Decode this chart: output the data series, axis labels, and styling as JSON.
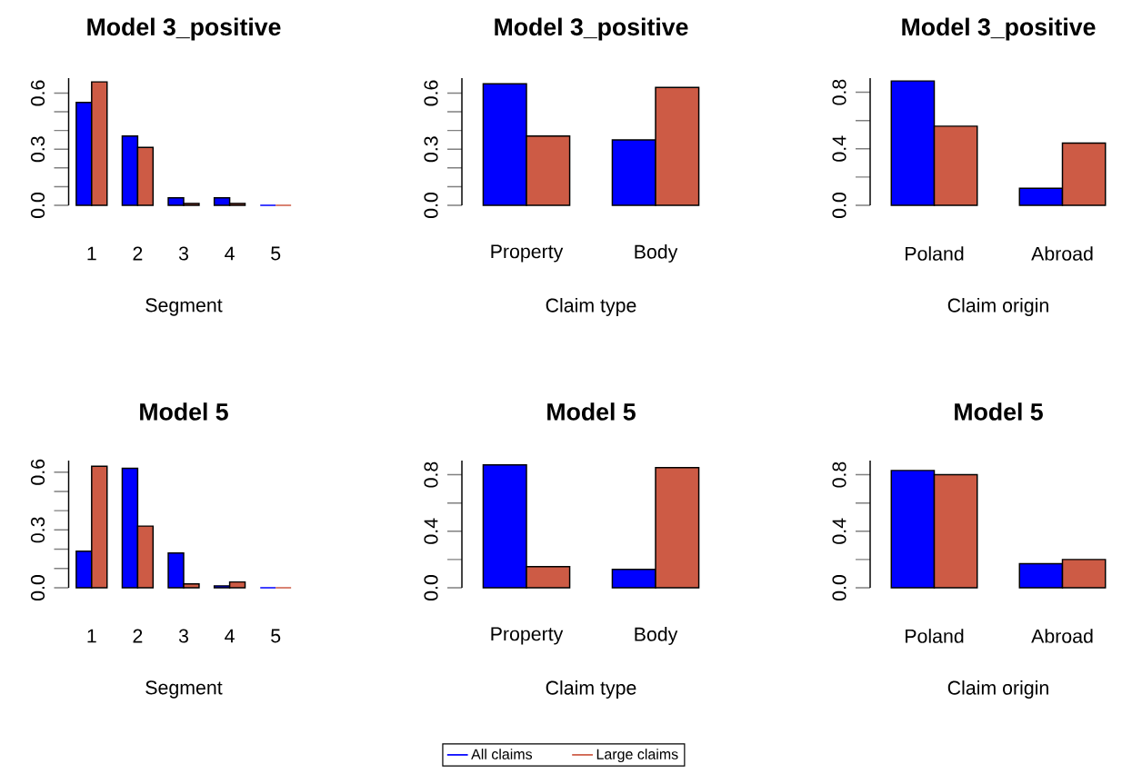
{
  "chart_data": [
    {
      "type": "bar",
      "title": "Model 3_positive",
      "xlabel": "Segment",
      "categories": [
        "1",
        "2",
        "3",
        "4",
        "5"
      ],
      "series": [
        {
          "color": "#0000ff",
          "values": [
            0.55,
            0.37,
            0.04,
            0.04,
            0
          ]
        },
        {
          "color": "#cd5b45",
          "values": [
            0.66,
            0.31,
            0.01,
            0.01,
            0
          ]
        }
      ],
      "ylim": [
        0,
        0.68
      ],
      "yticks": [
        {
          "value": 0,
          "label": "0.0"
        },
        {
          "value": 0.1,
          "label": null
        },
        {
          "value": 0.2,
          "label": null
        },
        {
          "value": 0.3,
          "label": "0.3"
        },
        {
          "value": 0.4,
          "label": null
        },
        {
          "value": 0.5,
          "label": null
        },
        {
          "value": 0.6,
          "label": "0.6"
        }
      ]
    },
    {
      "type": "bar",
      "title": "Model 3_positive",
      "xlabel": "Claim type",
      "categories": [
        "Property",
        "Body"
      ],
      "series": [
        {
          "color": "#0000ff",
          "values": [
            0.65,
            0.35
          ]
        },
        {
          "color": "#cd5b45",
          "values": [
            0.37,
            0.63
          ]
        }
      ],
      "ylim": [
        0,
        0.68
      ],
      "yticks": [
        {
          "value": 0,
          "label": "0.0"
        },
        {
          "value": 0.1,
          "label": null
        },
        {
          "value": 0.2,
          "label": null
        },
        {
          "value": 0.3,
          "label": "0.3"
        },
        {
          "value": 0.4,
          "label": null
        },
        {
          "value": 0.5,
          "label": null
        },
        {
          "value": 0.6,
          "label": "0.6"
        }
      ]
    },
    {
      "type": "bar",
      "title": "Model 3_positive",
      "xlabel": "Claim origin",
      "categories": [
        "Poland",
        "Abroad"
      ],
      "series": [
        {
          "color": "#0000ff",
          "values": [
            0.88,
            0.12
          ]
        },
        {
          "color": "#cd5b45",
          "values": [
            0.56,
            0.44
          ]
        }
      ],
      "ylim": [
        0,
        0.9
      ],
      "yticks": [
        {
          "value": 0,
          "label": "0.0"
        },
        {
          "value": 0.2,
          "label": null
        },
        {
          "value": 0.4,
          "label": "0.4"
        },
        {
          "value": 0.6,
          "label": null
        },
        {
          "value": 0.8,
          "label": "0.8"
        }
      ]
    },
    {
      "type": "bar",
      "title": "Model 5",
      "xlabel": "Segment",
      "categories": [
        "1",
        "2",
        "3",
        "4",
        "5"
      ],
      "series": [
        {
          "color": "#0000ff",
          "values": [
            0.19,
            0.62,
            0.18,
            0.01,
            0
          ]
        },
        {
          "color": "#cd5b45",
          "values": [
            0.63,
            0.32,
            0.02,
            0.03,
            0
          ]
        }
      ],
      "ylim": [
        0,
        0.66
      ],
      "yticks": [
        {
          "value": 0,
          "label": "0.0"
        },
        {
          "value": 0.1,
          "label": null
        },
        {
          "value": 0.2,
          "label": null
        },
        {
          "value": 0.3,
          "label": "0.3"
        },
        {
          "value": 0.4,
          "label": null
        },
        {
          "value": 0.5,
          "label": null
        },
        {
          "value": 0.6,
          "label": "0.6"
        }
      ]
    },
    {
      "type": "bar",
      "title": "Model 5",
      "xlabel": "Claim type",
      "categories": [
        "Property",
        "Body"
      ],
      "series": [
        {
          "name": "All claims",
          "color": "#0000ff",
          "values": [
            0.87,
            0.13
          ]
        },
        {
          "name": "Large claims",
          "color": "#cd5b45",
          "values": [
            0.15,
            0.85
          ]
        }
      ],
      "ylim": [
        0,
        0.9
      ],
      "yticks": [
        {
          "value": 0,
          "label": "0.0"
        },
        {
          "value": 0.2,
          "label": null
        },
        {
          "value": 0.4,
          "label": "0.4"
        },
        {
          "value": 0.6,
          "label": null
        },
        {
          "value": 0.8,
          "label": "0.8"
        }
      ],
      "legend": "bottom"
    },
    {
      "type": "bar",
      "title": "Model 5",
      "xlabel": "Claim origin",
      "categories": [
        "Poland",
        "Abroad"
      ],
      "series": [
        {
          "color": "#0000ff",
          "values": [
            0.83,
            0.17
          ]
        },
        {
          "color": "#cd5b45",
          "values": [
            0.8,
            0.2
          ]
        }
      ],
      "ylim": [
        0,
        0.9
      ],
      "yticks": [
        {
          "value": 0,
          "label": "0.0"
        },
        {
          "value": 0.2,
          "label": null
        },
        {
          "value": 0.4,
          "label": "0.4"
        },
        {
          "value": 0.6,
          "label": null
        },
        {
          "value": 0.8,
          "label": "0.8"
        }
      ]
    }
  ]
}
